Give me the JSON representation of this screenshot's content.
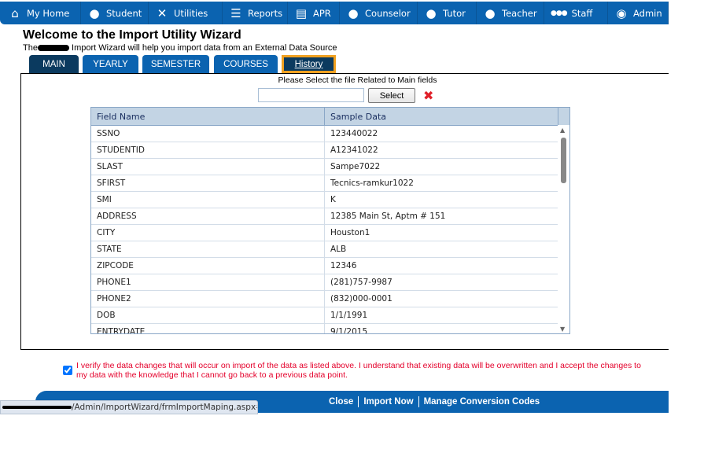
{
  "nav": [
    {
      "label": "My Home",
      "icon": "home-icon",
      "glyph": "⌂"
    },
    {
      "label": "Student",
      "icon": "student-icon",
      "glyph": "●"
    },
    {
      "label": "Utilities",
      "icon": "tools-icon",
      "glyph": "✕"
    },
    {
      "label": "Reports",
      "icon": "list-icon",
      "glyph": "☰"
    },
    {
      "label": "APR",
      "icon": "newspaper-icon",
      "glyph": "▤"
    },
    {
      "label": "Counselor",
      "icon": "counselor-icon",
      "glyph": "●"
    },
    {
      "label": "Tutor",
      "icon": "tutor-icon",
      "glyph": "●"
    },
    {
      "label": "Teacher",
      "icon": "teacher-icon",
      "glyph": "●"
    },
    {
      "label": "Staff",
      "icon": "staff-icon",
      "glyph": "●●●"
    },
    {
      "label": "Admin",
      "icon": "admin-icon",
      "glyph": "◉"
    }
  ],
  "title": "Welcome to the Import Utility Wizard",
  "subtitle_pre": "The",
  "subtitle_post": " Import Wizard will help you import data from an External Data Source",
  "tabs": [
    "MAIN",
    "YEARLY",
    "SEMESTER",
    "COURSES",
    "History"
  ],
  "prompt": "Please Select the file Related to Main fields",
  "select_label": "Select",
  "columns": [
    "Field Name",
    "Sample Data"
  ],
  "rows": [
    [
      "SSNO",
      "123440022"
    ],
    [
      "STUDENTID",
      "A12341022"
    ],
    [
      "SLAST",
      "Sampe7022"
    ],
    [
      "SFIRST",
      "Tecnics-ramkur1022"
    ],
    [
      "SMI",
      "K"
    ],
    [
      "ADDRESS",
      "12385 Main St, Aptm # 151"
    ],
    [
      "CITY",
      "Houston1"
    ],
    [
      "STATE",
      "ALB"
    ],
    [
      "ZIPCODE",
      "12346"
    ],
    [
      "PHONE1",
      "(281)757-9987"
    ],
    [
      "PHONE2",
      "(832)000-0001"
    ],
    [
      "DOB",
      "1/1/1991"
    ],
    [
      "ENTRYDATE",
      "9/1/2015"
    ]
  ],
  "verify_text": "I verify the data changes that will occur on import of the data as listed above. I understand that existing data will be overwritten and I accept the changes to my data with the knowledge that I cannot go back to a previous data point.",
  "verify_checked": true,
  "footer": [
    "Close",
    "Import Now",
    "Manage Conversion Codes"
  ],
  "status_url": "/Admin/ImportWizard/frmImportMaping.aspx#",
  "colors": {
    "nav": "#0b63b0",
    "active_tab": "#0b3a5f",
    "history_border": "#f0a020",
    "verify": "#e4002b"
  }
}
